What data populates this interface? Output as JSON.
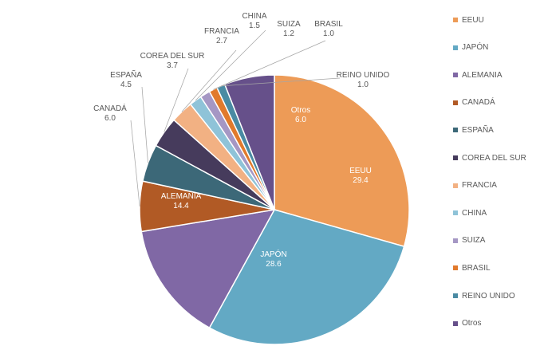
{
  "chart_data": {
    "type": "pie",
    "title": "",
    "legend_position": "right",
    "slices": [
      {
        "name": "EEUU",
        "value": 29.4,
        "value_label": "29.4",
        "color": "#ED9B57"
      },
      {
        "name": "JAPÓN",
        "value": 28.6,
        "value_label": "28.6",
        "color": "#63A9C4"
      },
      {
        "name": "ALEMANIA",
        "value": 14.4,
        "value_label": "14.4",
        "color": "#8068A5"
      },
      {
        "name": "CANADÁ",
        "value": 6.0,
        "value_label": "6.0",
        "color": "#B15A25"
      },
      {
        "name": "ESPAÑA",
        "value": 4.5,
        "value_label": "4.5",
        "color": "#3C6878"
      },
      {
        "name": "COREA DEL SUR",
        "value": 3.7,
        "value_label": "3.7",
        "color": "#463B5C"
      },
      {
        "name": "FRANCIA",
        "value": 2.7,
        "value_label": "2.7",
        "color": "#F2B183"
      },
      {
        "name": "CHINA",
        "value": 1.5,
        "value_label": "1.5",
        "color": "#8FC3D8"
      },
      {
        "name": "SUIZA",
        "value": 1.2,
        "value_label": "1.2",
        "color": "#A597C4"
      },
      {
        "name": "BRASIL",
        "value": 1.0,
        "value_label": "1.0",
        "color": "#E17A2C"
      },
      {
        "name": "REINO UNIDO",
        "value": 1.0,
        "value_label": "1.0",
        "color": "#4A8BA3"
      },
      {
        "name": "Otros",
        "value": 6.0,
        "value_label": "6.0",
        "color": "#66508A"
      }
    ]
  }
}
